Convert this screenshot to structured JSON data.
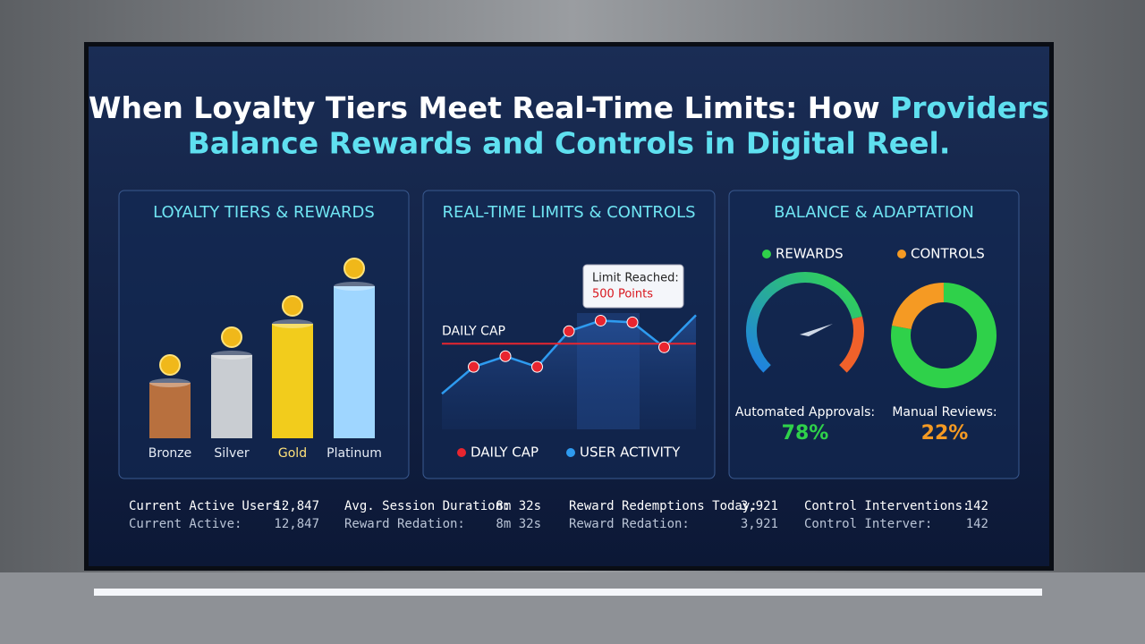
{
  "title": {
    "line1": "When Loyalty Tiers Meet Real-Time Limits: How",
    "line1_highlight": "Providers",
    "line2": "Balance Rewards and Controls in Digital Reel."
  },
  "chart_data": [
    {
      "type": "bar",
      "title": "LOYALTY TIERS & REWARDS",
      "categories": [
        "Bronze",
        "Silver",
        "Gold",
        "Platinum"
      ],
      "values": [
        62,
        93,
        128,
        170
      ],
      "colors": [
        "#b8703e",
        "#c9cdd2",
        "#f2cc1c",
        "#9fd6ff"
      ]
    },
    {
      "type": "line",
      "title": "REAL-TIME LIMITS & CONTROLS",
      "ylim": [
        0,
        700
      ],
      "cap": {
        "name": "DAILY CAP",
        "value": 500,
        "color": "#e8252f"
      },
      "annotation": {
        "line1": "Limit Reached:",
        "line2": "500 Points"
      },
      "series": [
        {
          "name": "USER ACTIVITY",
          "color": "#2e9bf0",
          "values": [
            208,
            365,
            427,
            365,
            573,
            635,
            625,
            479,
            667
          ]
        }
      ]
    },
    {
      "type": "donut",
      "title": "BALANCE & ADAPTATION",
      "series": [
        {
          "name": "REWARDS",
          "color": "#2fd14a",
          "label": "Automated Approvals:",
          "values": [
            78
          ],
          "value_labels": [
            "78%"
          ]
        },
        {
          "name": "CONTROLS",
          "color": "#f59a23",
          "label": "Manual Reviews:",
          "values": [
            22
          ],
          "value_labels": [
            "22%"
          ]
        }
      ]
    }
  ],
  "stats": {
    "rows": [
      [
        [
          "Current Active Users:",
          "12,847"
        ],
        [
          "Avg. Session Duration:",
          "8m 32s"
        ],
        [
          "Reward Redemptions Today:",
          "3,921"
        ],
        [
          "Control Interventions:",
          "142"
        ]
      ],
      [
        [
          "Current Active:",
          "12,847"
        ],
        [
          "Reward Redation:",
          "8m 32s"
        ],
        [
          "Reward Redation:",
          "3,921"
        ],
        [
          "Control Interver:",
          "142"
        ]
      ]
    ]
  }
}
